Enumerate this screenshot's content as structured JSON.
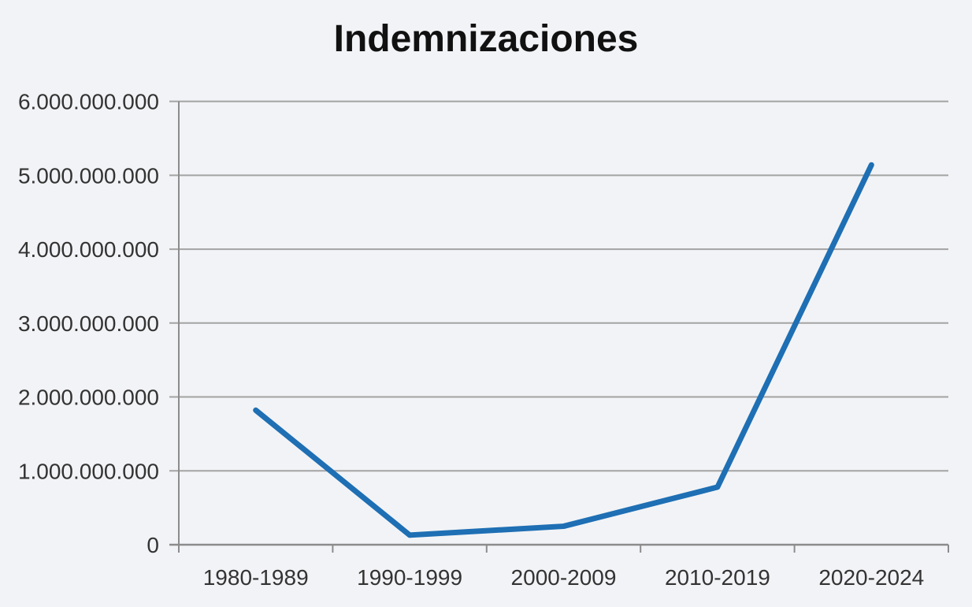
{
  "chart_data": {
    "type": "line",
    "title": "Indemnizaciones",
    "categories": [
      "1980-1989",
      "1990-1999",
      "2000-2009",
      "2010-2019",
      "2020-2024"
    ],
    "series": [
      {
        "name": "Indemnizaciones",
        "values": [
          1820000000,
          130000000,
          250000000,
          780000000,
          5140000000
        ]
      }
    ],
    "ylim": [
      0,
      6000000000
    ],
    "ytick_step": 1000000000,
    "ytick_labels": [
      "0",
      "1.000.000.000",
      "2.000.000.000",
      "3.000.000.000",
      "4.000.000.000",
      "5.000.000.000",
      "6.000.000.000"
    ],
    "xlabel": "",
    "ylabel": "",
    "grid": true,
    "legend": "none"
  },
  "colors": {
    "line": "#1e6fb4",
    "grid": "#a3a3a3",
    "axis": "#8c8c8c",
    "tick_text": "#333333",
    "title_text": "#111111",
    "background": "#f2f3f6"
  }
}
